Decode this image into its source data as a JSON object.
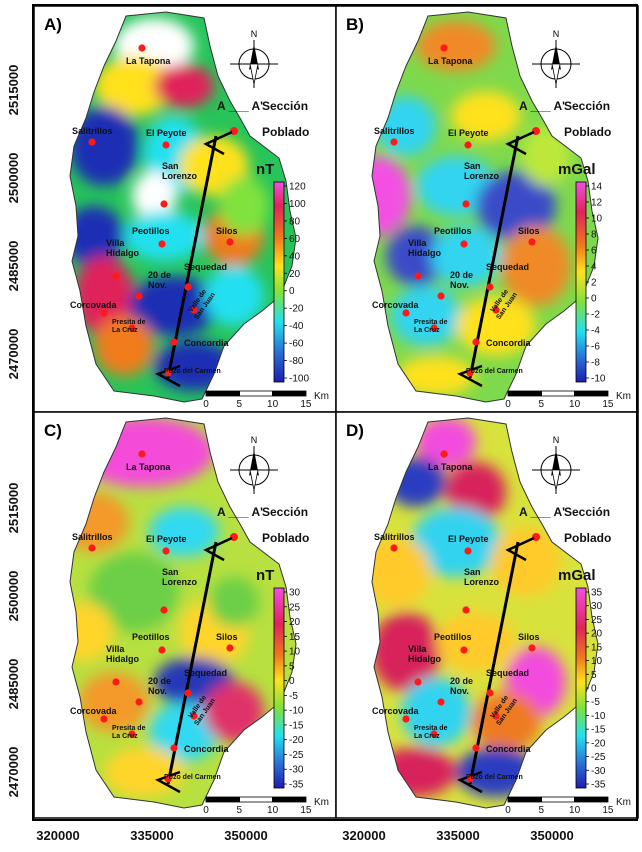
{
  "y_axis_ticks": [
    "2515000",
    "2500000",
    "2485000",
    "2470000"
  ],
  "x_axis_ticks": [
    "320000",
    "335000",
    "350000"
  ],
  "legend": {
    "section_symbol": "A ___ A'",
    "section_label": "Sección",
    "town_label": "Poblado"
  },
  "north_label": "N",
  "scalebar": {
    "ticks": [
      "0",
      "5",
      "10",
      "15"
    ],
    "unit": "Km"
  },
  "towns": {
    "la_tapona": "La Tapona",
    "salitrillos": "Salitrillos",
    "el_peyote": "El Peyote",
    "san": "San",
    "lorenzo": "Lorenzo",
    "peotillos": "Peotillos",
    "silos": "Silos",
    "villa": "Villa",
    "hidalgo": "Hidalgo",
    "20_de": "20 de",
    "nov": "Nov.",
    "sequedad": "Sequedad",
    "corcovada": "Corcovada",
    "valle_de": "Valle de",
    "san_juan": "San Juan",
    "presita_de": "Presita de",
    "la_cruz": "La Cruz",
    "concordia": "Concordia",
    "pozo": "Pozo del Carmen"
  },
  "panels": [
    {
      "label": "A)",
      "unit": "nT",
      "ticks": [
        "120",
        "100",
        "80",
        "60",
        "40",
        "20",
        "0",
        "-20",
        "-40",
        "-60",
        "-80",
        "-100"
      ],
      "colors": {
        "base": "#27c45a",
        "c1": "#22e0f0",
        "c2": "#1e2db4",
        "c3": "#ffe11f",
        "c4": "#f07b1c",
        "c5": "#e0245a",
        "c6": "#ffffff",
        "c7": "#7fe23c"
      }
    },
    {
      "label": "B)",
      "unit": "mGal",
      "ticks": [
        "14",
        "12",
        "10",
        "8",
        "6",
        "4",
        "2",
        "0",
        "-2",
        "-4",
        "-6",
        "-8",
        "-10"
      ],
      "colors": {
        "base": "#7ed94c",
        "c1": "#32d4f0",
        "c2": "#3a4cc8",
        "c3": "#ffe11f",
        "c4": "#f08a25",
        "c5": "#e02a6a",
        "c6": "#f34fe3",
        "c7": "#bde83a"
      }
    },
    {
      "label": "C)",
      "unit": "nT",
      "ticks": [
        "30",
        "25",
        "20",
        "15",
        "10",
        "5",
        "0",
        "-5",
        "-10",
        "-15",
        "-20",
        "-25",
        "-30",
        "-35"
      ],
      "colors": {
        "base": "#b7e040",
        "c1": "#33d9f0",
        "c2": "#2838b8",
        "c3": "#ffd52a",
        "c4": "#f39a2c",
        "c5": "#e0306a",
        "c6": "#f44cd9",
        "c7": "#6ccf46"
      }
    },
    {
      "label": "D)",
      "unit": "mGal",
      "ticks": [
        "35",
        "30",
        "25",
        "20",
        "15",
        "10",
        "5",
        "0",
        "-5",
        "-10",
        "-15",
        "-20",
        "-25",
        "-30",
        "-35"
      ],
      "colors": {
        "base": "#d8e23c",
        "c1": "#33d3ef",
        "c2": "#2b3cc0",
        "c3": "#ffca2a",
        "c4": "#ee7a23",
        "c5": "#d7205c",
        "c6": "#f24bde",
        "c7": "#8bd843"
      }
    }
  ]
}
